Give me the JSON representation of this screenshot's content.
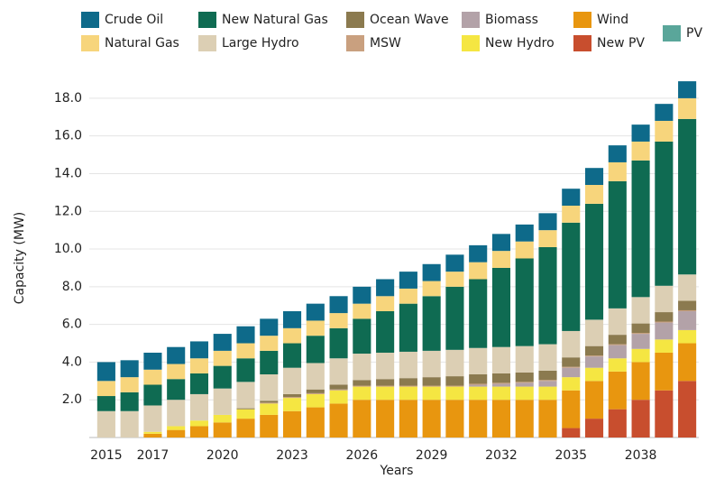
{
  "chart_data": {
    "type": "stacked_bar",
    "x_label": "Years",
    "y_label": "Capacity (MW)",
    "categories": [
      "2015",
      null,
      "2017",
      null,
      null,
      "2020",
      null,
      null,
      "2023",
      null,
      null,
      "2026",
      null,
      null,
      "2029",
      null,
      null,
      "2032",
      null,
      null,
      "2035",
      null,
      null,
      "2038",
      null,
      null
    ],
    "ylim": [
      0,
      19
    ],
    "yticks": [
      {
        "value": 2,
        "label": "2.0"
      },
      {
        "value": 4,
        "label": "4.0"
      },
      {
        "value": 6,
        "label": "6.0"
      },
      {
        "value": 8,
        "label": "8.0"
      },
      {
        "value": 10,
        "label": "10.0"
      },
      {
        "value": 12,
        "label": "12.0"
      },
      {
        "value": 14,
        "label": "14.0"
      },
      {
        "value": 16,
        "label": "16.0"
      },
      {
        "value": 18,
        "label": "18.0"
      }
    ],
    "grid": true,
    "series": [
      {
        "name": "Crude Oil",
        "color": "#0e6a8a",
        "values": [
          1.0,
          0.9,
          0.9,
          0.9,
          0.9,
          0.9,
          0.9,
          0.9,
          0.9,
          0.9,
          0.9,
          0.9,
          0.9,
          0.9,
          0.9,
          0.9,
          0.9,
          0.9,
          0.9,
          0.9,
          0.9,
          0.9,
          0.9,
          0.9,
          0.9,
          0.9
        ]
      },
      {
        "name": "Natural Gas",
        "color": "#f7d57c",
        "values": [
          0.8,
          0.8,
          0.8,
          0.8,
          0.8,
          0.8,
          0.8,
          0.8,
          0.8,
          0.8,
          0.8,
          0.8,
          0.8,
          0.8,
          0.8,
          0.8,
          0.9,
          0.9,
          0.9,
          0.9,
          0.9,
          1.0,
          1.0,
          1.0,
          1.1,
          1.1
        ]
      },
      {
        "name": "New Natural Gas",
        "color": "#0f6b52",
        "values": [
          0.8,
          1.0,
          1.1,
          1.1,
          1.1,
          1.2,
          1.25,
          1.25,
          1.3,
          1.45,
          1.6,
          1.85,
          2.2,
          2.55,
          2.9,
          3.35,
          3.65,
          4.2,
          4.65,
          5.15,
          5.75,
          6.15,
          6.75,
          7.25,
          7.65,
          8.25
        ]
      },
      {
        "name": "Large Hydro",
        "color": "#dccfb4",
        "values": [
          1.4,
          1.4,
          1.4,
          1.4,
          1.4,
          1.4,
          1.4,
          1.4,
          1.4,
          1.4,
          1.4,
          1.4,
          1.4,
          1.4,
          1.4,
          1.4,
          1.4,
          1.4,
          1.4,
          1.4,
          1.4,
          1.4,
          1.4,
          1.4,
          1.4,
          1.4
        ]
      },
      {
        "name": "Ocean Wave",
        "color": "#8b7a4f",
        "values": [
          0,
          0,
          0,
          0,
          0,
          0,
          0.05,
          0.1,
          0.15,
          0.2,
          0.25,
          0.3,
          0.35,
          0.4,
          0.45,
          0.5,
          0.5,
          0.5,
          0.5,
          0.5,
          0.5,
          0.5,
          0.5,
          0.5,
          0.5,
          0.5
        ]
      },
      {
        "name": "MSW",
        "color": "#c9a07f",
        "values": [
          0,
          0,
          0,
          0,
          0,
          0,
          0,
          0.05,
          0.05,
          0.05,
          0.05,
          0.05,
          0.05,
          0.05,
          0.05,
          0.05,
          0.05,
          0.05,
          0.05,
          0.05,
          0.05,
          0.05,
          0.05,
          0.05,
          0.05,
          0.05
        ]
      },
      {
        "name": "Biomass",
        "color": "#b3a2a8",
        "values": [
          0,
          0,
          0,
          0,
          0,
          0,
          0,
          0,
          0,
          0,
          0,
          0,
          0,
          0,
          0,
          0,
          0.1,
          0.15,
          0.2,
          0.3,
          0.5,
          0.6,
          0.7,
          0.8,
          0.9,
          1.0
        ]
      },
      {
        "name": "New Hydro",
        "color": "#f5e642",
        "values": [
          0,
          0,
          0.1,
          0.2,
          0.3,
          0.4,
          0.5,
          0.6,
          0.7,
          0.7,
          0.7,
          0.7,
          0.7,
          0.7,
          0.7,
          0.7,
          0.7,
          0.7,
          0.7,
          0.7,
          0.7,
          0.7,
          0.7,
          0.7,
          0.7,
          0.7
        ]
      },
      {
        "name": "Wind",
        "color": "#e8960f",
        "values": [
          0,
          0,
          0.2,
          0.4,
          0.6,
          0.8,
          1.0,
          1.2,
          1.4,
          1.6,
          1.8,
          2.0,
          2.0,
          2.0,
          2.0,
          2.0,
          2.0,
          2.0,
          2.0,
          2.0,
          2.0,
          2.0,
          2.0,
          2.0,
          2.0,
          2.0
        ]
      },
      {
        "name": "New PV",
        "color": "#c84e2e",
        "values": [
          0,
          0,
          0,
          0,
          0,
          0,
          0,
          0,
          0,
          0,
          0,
          0,
          0,
          0,
          0,
          0,
          0,
          0,
          0,
          0,
          0.5,
          1.0,
          1.5,
          2.0,
          2.5,
          3.0
        ]
      },
      {
        "name": "PV",
        "color": "#5aa69a",
        "values": [
          0,
          0,
          0,
          0,
          0,
          0,
          0,
          0,
          0,
          0,
          0,
          0,
          0,
          0,
          0,
          0,
          0,
          0,
          0,
          0,
          0,
          0,
          0,
          0,
          0,
          0
        ]
      }
    ]
  }
}
